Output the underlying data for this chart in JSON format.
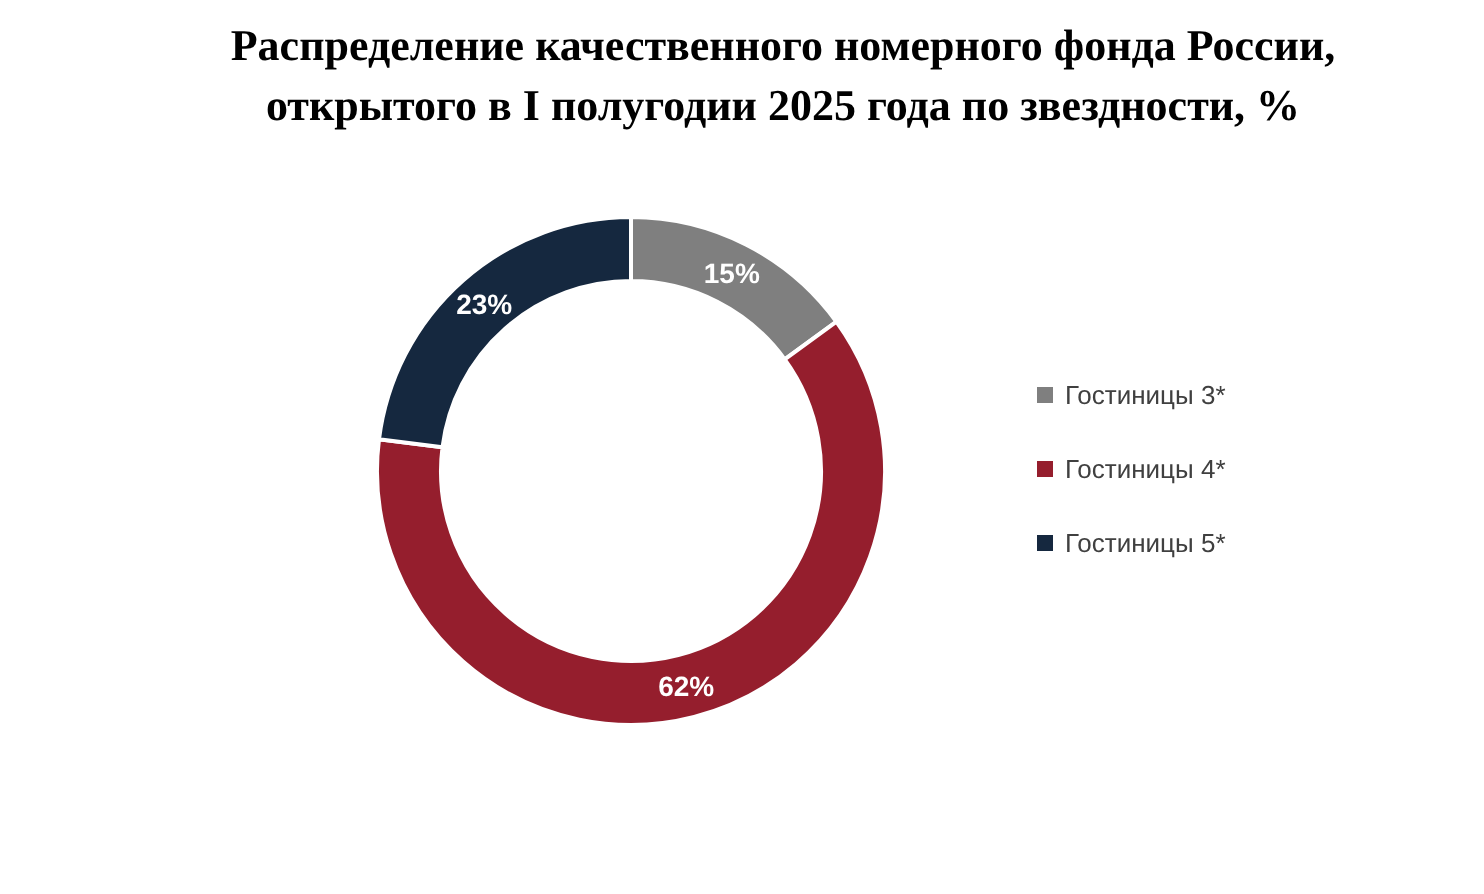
{
  "chart_data": {
    "type": "donut",
    "title": "Распределение качественного номерного фонда России,\nоткрытого в I полугодии 2025 года по звездности, %",
    "categories": [
      "Гостиницы 3*",
      "Гостиницы 4*",
      "Гостиницы 5*"
    ],
    "values": [
      15,
      62,
      23
    ],
    "value_labels": [
      "15%",
      "62%",
      "23%"
    ],
    "colors": [
      "#7f7f7f",
      "#951e2d",
      "#15283f"
    ],
    "legend": "right"
  }
}
